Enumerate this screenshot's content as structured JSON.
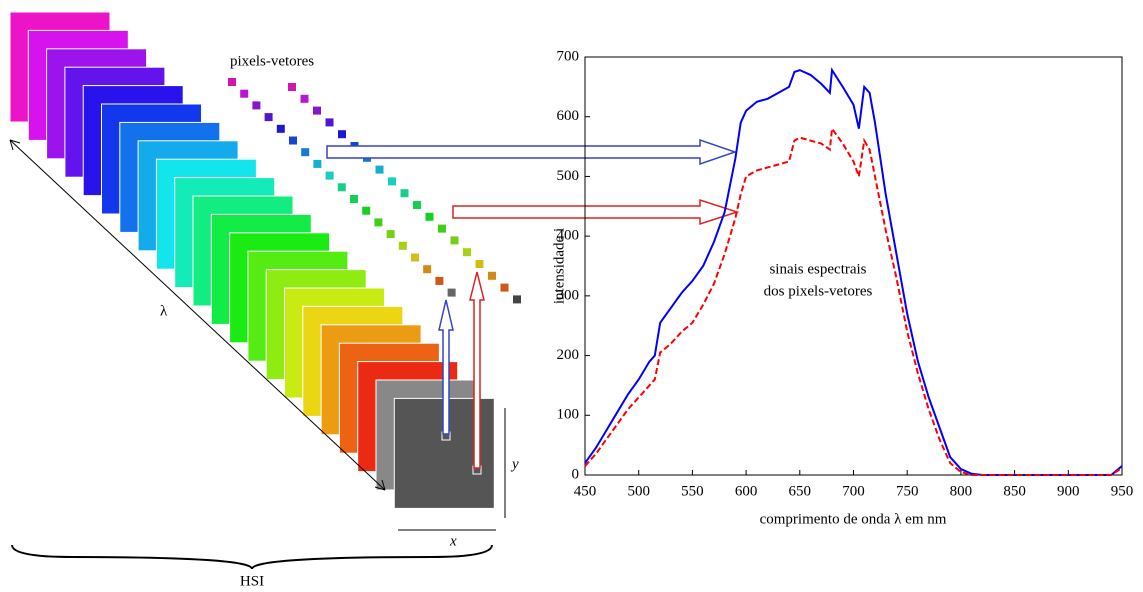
{
  "chart_data": {
    "type": "line",
    "xlabel": "comprimento de onda λ em nm",
    "ylabel": "intensidade i",
    "annotation": [
      "sinais espectrais",
      "dos pixels-vetores"
    ],
    "x": [
      450,
      460,
      470,
      480,
      490,
      500,
      510,
      515,
      520,
      530,
      540,
      550,
      560,
      570,
      580,
      590,
      595,
      600,
      610,
      620,
      630,
      640,
      645,
      650,
      660,
      670,
      678,
      680,
      690,
      700,
      705,
      710,
      715,
      720,
      730,
      740,
      750,
      760,
      770,
      780,
      790,
      800,
      810,
      820,
      900,
      940,
      950
    ],
    "series": [
      {
        "color": "#0000ff",
        "dash": "solid",
        "values": [
          20,
          45,
          75,
          105,
          135,
          160,
          190,
          200,
          255,
          280,
          305,
          325,
          350,
          390,
          440,
          530,
          590,
          610,
          625,
          630,
          640,
          650,
          675,
          678,
          670,
          655,
          640,
          678,
          650,
          620,
          580,
          650,
          640,
          590,
          470,
          370,
          270,
          190,
          130,
          80,
          30,
          10,
          2,
          0,
          0,
          0,
          15
        ]
      },
      {
        "color": "#ff0000",
        "dash": "dashed",
        "values": [
          15,
          35,
          60,
          85,
          110,
          130,
          150,
          160,
          205,
          220,
          240,
          255,
          285,
          320,
          370,
          430,
          470,
          500,
          510,
          515,
          520,
          525,
          560,
          565,
          560,
          555,
          545,
          580,
          555,
          525,
          500,
          560,
          545,
          500,
          410,
          330,
          240,
          170,
          110,
          60,
          20,
          5,
          0,
          0,
          0,
          0,
          12
        ]
      }
    ],
    "xlim": [
      450,
      950
    ],
    "xticks": [
      450,
      500,
      550,
      600,
      650,
      700,
      750,
      800,
      850,
      900,
      950
    ],
    "ylim": [
      0,
      700
    ],
    "yticks": [
      0,
      100,
      200,
      300,
      400,
      500,
      600,
      700
    ]
  },
  "diagram": {
    "pixels_label": "pixels-vetores",
    "lambda_label": "λ",
    "hsi_label": "HSI",
    "x_label": "x",
    "y_label": "y"
  }
}
